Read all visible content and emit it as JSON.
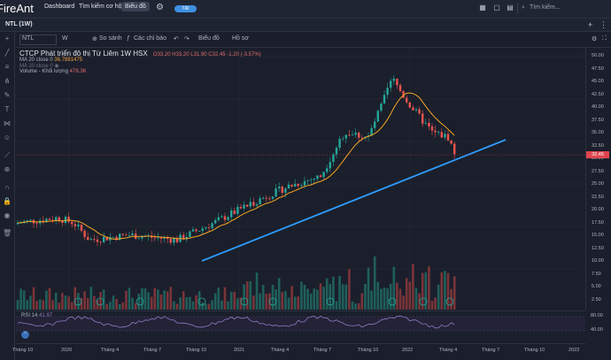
{
  "nav": {
    "logo": "FireAnt",
    "links": [
      "Dashboard",
      "Tìm kiếm cơ hội",
      "Biểu đồ"
    ],
    "toggle_label": "T/Đ",
    "search_placeholder": "Tìm kiếm..."
  },
  "tab": {
    "name": "NTL (1W)"
  },
  "toolbar": {
    "symbol": "NTL",
    "interval": "W",
    "compare": "So sánh",
    "indicators": "Các chỉ báo",
    "chart_type": "Biểu đồ",
    "profile": "Hồ sơ"
  },
  "legend": {
    "title": "CTCP Phát triển đô thị Từ Liêm  1W  HSX",
    "ohlc": "O33.20  H33.20  L31.90  C32.45  -1.20 (-3.57%)",
    "ma1_label": "MA 20 close 0",
    "ma1_value": "36.7881475",
    "ma2_label": "MA 20 close 0",
    "volume_label": "Volume - Khối lượng",
    "volume_value": "478.3K",
    "rsi_label": "RSI 14",
    "rsi_value": "41.97"
  },
  "price_axis": [
    "50.00",
    "47.50",
    "45.00",
    "42.50",
    "40.00",
    "37.50",
    "35.00",
    "32.50",
    "30.00",
    "27.50",
    "25.00",
    "22.50",
    "20.00",
    "17.50",
    "15.00",
    "12.50",
    "10.00",
    "7.50",
    "5.00",
    "2.50"
  ],
  "last_price": "32.45",
  "rsi_axis": [
    "80.00",
    "40.00"
  ],
  "time_axis": [
    "Tháng 10",
    "2020",
    "Tháng 4",
    "Tháng 7",
    "Tháng 10",
    "2021",
    "Tháng 4",
    "Tháng 7",
    "Tháng 10",
    "2022",
    "Tháng 4",
    "Tháng 7",
    "Tháng 10",
    "2023"
  ],
  "colors": {
    "up": "#26a69a",
    "down": "#ef5350",
    "ma": "#f5a623",
    "trend": "#2f9bff",
    "rsi": "#8e7cc3"
  }
}
